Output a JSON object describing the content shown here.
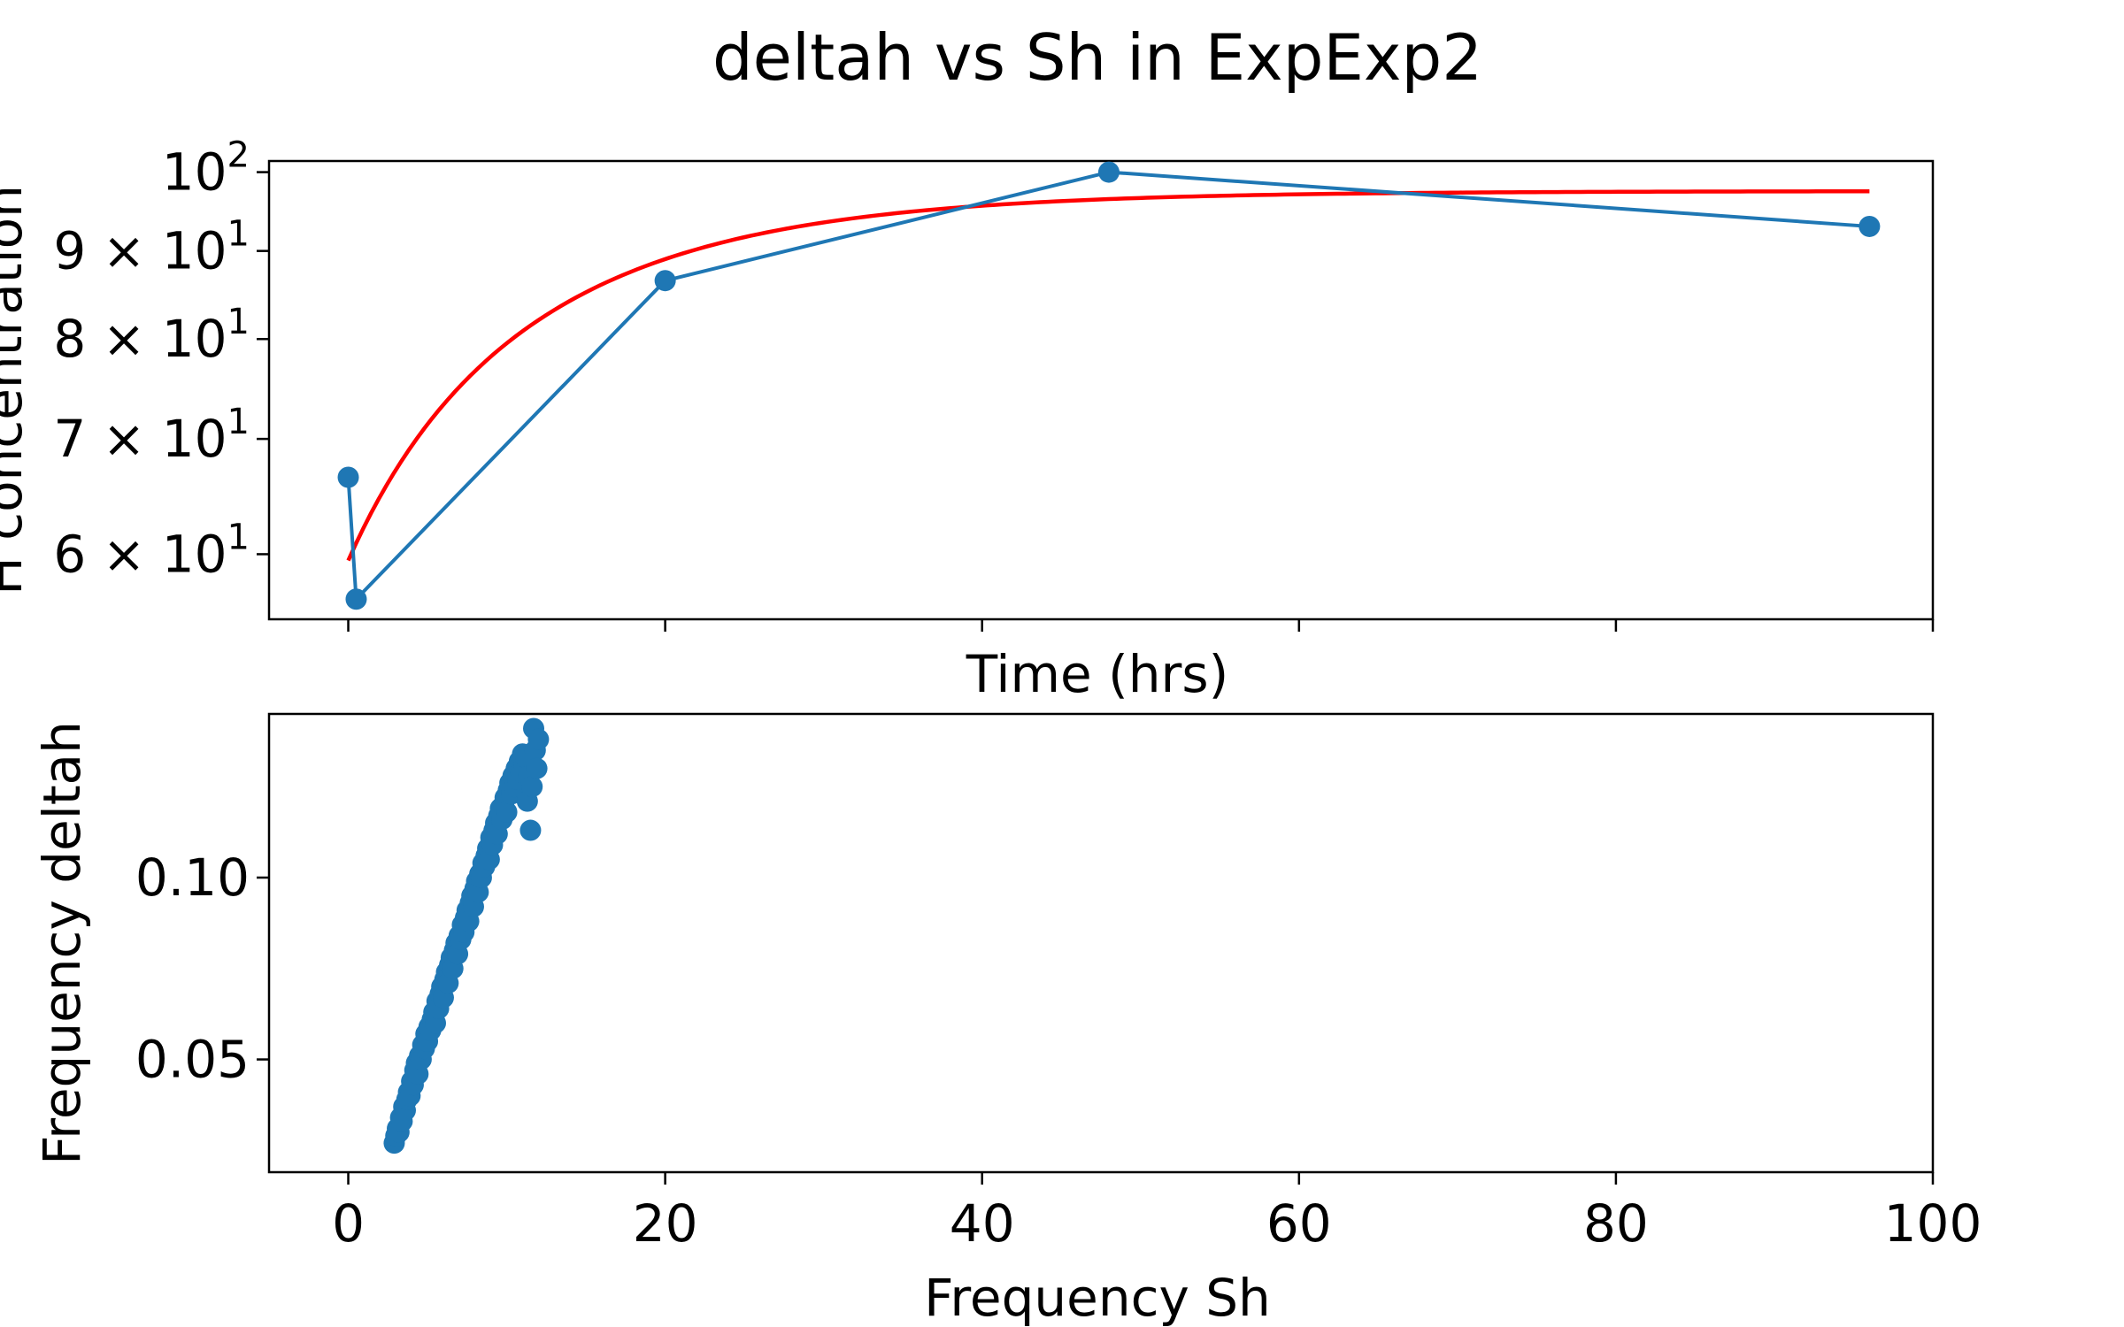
{
  "title": "deltah vs Sh in ExpExp2",
  "chart_data": [
    {
      "type": "line",
      "xlabel": "Time (hrs)",
      "ylabel": "H concentration",
      "yscale": "log",
      "xlim": [
        -5,
        100
      ],
      "ylim": [
        55,
        101.5
      ],
      "yticks": [
        {
          "value": 100,
          "mantissa": "",
          "base": "10",
          "exp": "2"
        },
        {
          "value": 90,
          "mantissa": "9 × ",
          "base": "10",
          "exp": "1"
        },
        {
          "value": 80,
          "mantissa": "8 × ",
          "base": "10",
          "exp": "1"
        },
        {
          "value": 70,
          "mantissa": "7 × ",
          "base": "10",
          "exp": "1"
        },
        {
          "value": 60,
          "mantissa": "6 × ",
          "base": "10",
          "exp": "1"
        }
      ],
      "series": [
        {
          "kind": "data",
          "color": "#1f77b4",
          "x": [
            0,
            0.5,
            20,
            48,
            96
          ],
          "y": [
            66.5,
            56.5,
            86.5,
            100,
            93
          ]
        },
        {
          "kind": "fit",
          "color": "#ff0000",
          "model": "exponential approach",
          "y0": 59.5,
          "yinf": 97.5,
          "k": 0.075,
          "xrange": [
            0,
            96
          ]
        }
      ]
    },
    {
      "type": "scatter",
      "xlabel": "Frequency Sh",
      "ylabel": "Frequency deltah",
      "xlim": [
        -5,
        100
      ],
      "ylim": [
        0.019,
        0.145
      ],
      "xticks": [
        "0",
        "20",
        "40",
        "60",
        "80",
        "100"
      ],
      "yticks": [
        "0.10",
        "0.05"
      ],
      "color": "#1f77b4",
      "x": [
        2.9,
        3.0,
        3.1,
        3.2,
        3.3,
        3.4,
        3.5,
        3.6,
        3.7,
        3.8,
        3.9,
        4.0,
        4.1,
        4.2,
        4.3,
        4.4,
        4.5,
        4.6,
        4.7,
        4.8,
        4.9,
        5.0,
        5.1,
        5.2,
        5.3,
        5.4,
        5.5,
        5.6,
        5.7,
        5.8,
        5.9,
        6.0,
        6.1,
        6.2,
        6.3,
        6.4,
        6.5,
        6.6,
        6.7,
        6.8,
        6.9,
        7.0,
        7.1,
        7.2,
        7.3,
        7.4,
        7.5,
        7.6,
        7.7,
        7.8,
        7.9,
        8.0,
        8.1,
        8.2,
        8.3,
        8.4,
        8.5,
        8.6,
        8.7,
        8.8,
        8.9,
        9.0,
        9.1,
        9.2,
        9.3,
        9.4,
        9.5,
        9.6,
        9.7,
        9.8,
        9.9,
        10.0,
        10.1,
        10.2,
        10.3,
        10.4,
        10.5,
        10.6,
        10.7,
        10.8,
        10.9,
        11.0,
        11.1,
        11.2,
        11.3,
        11.4,
        11.5,
        11.6,
        11.7,
        11.8,
        11.9,
        12.0
      ],
      "y": [
        0.027,
        0.029,
        0.031,
        0.03,
        0.034,
        0.033,
        0.037,
        0.036,
        0.039,
        0.041,
        0.04,
        0.044,
        0.043,
        0.047,
        0.049,
        0.046,
        0.051,
        0.05,
        0.054,
        0.053,
        0.057,
        0.055,
        0.059,
        0.058,
        0.061,
        0.063,
        0.06,
        0.066,
        0.064,
        0.068,
        0.07,
        0.067,
        0.072,
        0.074,
        0.071,
        0.076,
        0.078,
        0.075,
        0.08,
        0.082,
        0.079,
        0.084,
        0.083,
        0.087,
        0.085,
        0.089,
        0.091,
        0.088,
        0.093,
        0.095,
        0.092,
        0.097,
        0.099,
        0.096,
        0.101,
        0.1,
        0.104,
        0.103,
        0.106,
        0.108,
        0.105,
        0.111,
        0.109,
        0.113,
        0.115,
        0.112,
        0.117,
        0.119,
        0.116,
        0.12,
        0.122,
        0.118,
        0.124,
        0.126,
        0.123,
        0.128,
        0.125,
        0.13,
        0.127,
        0.132,
        0.129,
        0.134,
        0.131,
        0.133,
        0.121,
        0.128,
        0.113,
        0.125,
        0.141,
        0.135,
        0.13,
        0.138
      ]
    }
  ]
}
